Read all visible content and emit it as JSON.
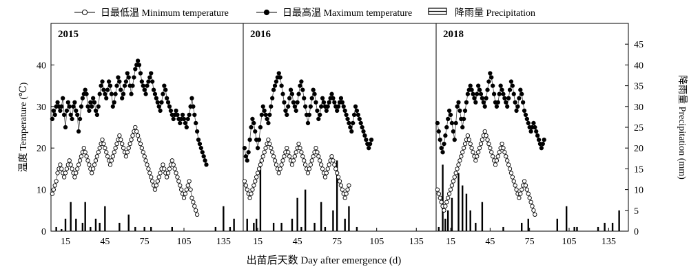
{
  "chart_data": {
    "type": "multi-panel line + bar",
    "legend": {
      "placement": "top-center",
      "entries": [
        {
          "key": "tmin",
          "label": "日最低温 Minimum temperature",
          "marker": "open-circle-line"
        },
        {
          "key": "tmax",
          "label": "日最高温 Maximum temperature",
          "marker": "filled-circle-line"
        },
        {
          "key": "prec",
          "label": "降雨量 Precipitation",
          "marker": "bar"
        }
      ]
    },
    "xlabel": "出苗后天数 Day after emergence (d)",
    "ylabel_left": "温度 Temperature (℃)",
    "ylabel_right": "降雨量 Precipitation (mm)",
    "ylim_left": [
      0,
      50
    ],
    "ylim_right": [
      0,
      50
    ],
    "yticks_left": [
      0,
      10,
      20,
      30,
      40
    ],
    "yticks_right": [
      0,
      5,
      10,
      15,
      20,
      25,
      30,
      35,
      40,
      45
    ],
    "xlim": [
      4,
      150
    ],
    "xticks": [
      15,
      45,
      75,
      105,
      135
    ],
    "panels": [
      {
        "year": "2015",
        "x_start": 5,
        "tmax": [
          27,
          29,
          28,
          30,
          31,
          30,
          29,
          30,
          32,
          28,
          25,
          29,
          31,
          30,
          28,
          27,
          30,
          31,
          29,
          28,
          24,
          27,
          30,
          32,
          33,
          34,
          33,
          30,
          29,
          31,
          30,
          32,
          31,
          29,
          28,
          30,
          33,
          35,
          36,
          34,
          33,
          32,
          34,
          36,
          35,
          33,
          30,
          31,
          33,
          35,
          37,
          36,
          34,
          32,
          33,
          35,
          36,
          38,
          37,
          35,
          33,
          35,
          37,
          39,
          40,
          41,
          40,
          38,
          36,
          35,
          34,
          33,
          35,
          36,
          37,
          38,
          36,
          34,
          33,
          32,
          31,
          30,
          29,
          31,
          33,
          35,
          34,
          32,
          31,
          30,
          29,
          28,
          27,
          28,
          29,
          28,
          27,
          26,
          27,
          28,
          27,
          26,
          25,
          27,
          28,
          30,
          32,
          30,
          28,
          26,
          24,
          22,
          21,
          20,
          19,
          18,
          17,
          16
        ],
        "tmin": [
          9,
          10,
          11,
          12,
          14,
          15,
          16,
          15,
          14,
          13,
          14,
          15,
          16,
          17,
          16,
          15,
          14,
          13,
          14,
          15,
          16,
          17,
          18,
          19,
          20,
          19,
          18,
          17,
          16,
          15,
          14,
          15,
          16,
          17,
          18,
          19,
          20,
          21,
          22,
          21,
          20,
          19,
          18,
          17,
          16,
          17,
          18,
          19,
          20,
          21,
          22,
          23,
          22,
          21,
          20,
          19,
          18,
          19,
          20,
          21,
          22,
          23,
          24,
          25,
          24,
          23,
          22,
          21,
          20,
          19,
          18,
          17,
          16,
          15,
          14,
          13,
          12,
          11,
          10,
          11,
          12,
          13,
          14,
          15,
          16,
          15,
          14,
          13,
          14,
          15,
          16,
          17,
          16,
          15,
          14,
          13,
          12,
          11,
          10,
          9,
          8,
          9,
          10,
          11,
          12,
          10,
          8,
          7,
          6,
          5,
          4
        ],
        "prec": [
          [
            8,
            1
          ],
          [
            12,
            0.5
          ],
          [
            15,
            3
          ],
          [
            19,
            7
          ],
          [
            23,
            3
          ],
          [
            28,
            2
          ],
          [
            30,
            7
          ],
          [
            34,
            1
          ],
          [
            38,
            3
          ],
          [
            41,
            2
          ],
          [
            45,
            6
          ],
          [
            56,
            2
          ],
          [
            63,
            4
          ],
          [
            68,
            1
          ],
          [
            75,
            1
          ],
          [
            80,
            1
          ],
          [
            96,
            1
          ],
          [
            129,
            1
          ],
          [
            135,
            6
          ],
          [
            140,
            1
          ],
          [
            143,
            3
          ]
        ]
      },
      {
        "year": "2016",
        "x_start": 5,
        "tmax": [
          20,
          18,
          17,
          19,
          22,
          25,
          27,
          26,
          24,
          22,
          20,
          22,
          25,
          28,
          30,
          29,
          28,
          27,
          26,
          28,
          30,
          32,
          34,
          35,
          36,
          37,
          38,
          37,
          35,
          33,
          31,
          29,
          28,
          30,
          32,
          34,
          33,
          31,
          30,
          29,
          31,
          33,
          35,
          36,
          34,
          32,
          30,
          28,
          26,
          28,
          30,
          32,
          34,
          33,
          31,
          29,
          27,
          28,
          30,
          32,
          31,
          30,
          29,
          30,
          31,
          32,
          33,
          32,
          31,
          30,
          29,
          30,
          31,
          32,
          31,
          30,
          29,
          28,
          27,
          26,
          25,
          24,
          26,
          28,
          30,
          29,
          28,
          27,
          26,
          25,
          24,
          23,
          22,
          21,
          20,
          21,
          22
        ],
        "tmin": [
          12,
          11,
          10,
          9,
          8,
          9,
          10,
          11,
          12,
          13,
          14,
          15,
          16,
          17,
          18,
          19,
          20,
          21,
          22,
          21,
          20,
          19,
          18,
          17,
          16,
          15,
          14,
          15,
          16,
          17,
          18,
          19,
          20,
          19,
          18,
          17,
          16,
          17,
          18,
          19,
          20,
          21,
          20,
          19,
          18,
          17,
          16,
          15,
          14,
          15,
          16,
          17,
          18,
          19,
          20,
          19,
          18,
          17,
          16,
          15,
          14,
          13,
          14,
          15,
          16,
          17,
          18,
          17,
          16,
          15,
          14,
          13,
          12,
          11,
          10,
          9,
          8,
          9,
          10,
          11
        ],
        "prec": [
          [
            7,
            3
          ],
          [
            12,
            2
          ],
          [
            14,
            3
          ],
          [
            17,
            17
          ],
          [
            27,
            2
          ],
          [
            33,
            2
          ],
          [
            41,
            3
          ],
          [
            45,
            8
          ],
          [
            48,
            1
          ],
          [
            51,
            10
          ],
          [
            58,
            2
          ],
          [
            63,
            7
          ],
          [
            66,
            1
          ],
          [
            72,
            5
          ],
          [
            75,
            17
          ],
          [
            81,
            3
          ],
          [
            84,
            6
          ],
          [
            90,
            1
          ]
        ]
      },
      {
        "year": "2018",
        "x_start": 5,
        "tmax": [
          26,
          24,
          22,
          20,
          19,
          21,
          23,
          25,
          27,
          29,
          28,
          26,
          24,
          22,
          26,
          30,
          31,
          29,
          27,
          25,
          27,
          29,
          31,
          33,
          34,
          35,
          34,
          33,
          32,
          31,
          33,
          35,
          34,
          33,
          32,
          31,
          30,
          32,
          34,
          36,
          38,
          37,
          35,
          33,
          31,
          30,
          31,
          33,
          35,
          34,
          33,
          32,
          31,
          30,
          32,
          34,
          36,
          35,
          33,
          31,
          29,
          30,
          32,
          34,
          33,
          31,
          29,
          28,
          27,
          26,
          25,
          24,
          25,
          26,
          25,
          24,
          23,
          22,
          21,
          20,
          21,
          22
        ],
        "tmin": [
          10,
          9,
          8,
          7,
          6,
          5,
          6,
          7,
          8,
          9,
          10,
          11,
          12,
          13,
          14,
          15,
          16,
          17,
          18,
          19,
          20,
          21,
          22,
          23,
          22,
          21,
          20,
          19,
          18,
          17,
          18,
          19,
          20,
          21,
          22,
          23,
          24,
          23,
          22,
          21,
          20,
          19,
          18,
          17,
          16,
          17,
          18,
          19,
          20,
          21,
          20,
          19,
          18,
          17,
          16,
          15,
          14,
          13,
          12,
          11,
          10,
          9,
          8,
          9,
          10,
          11,
          12,
          11,
          10,
          9,
          8,
          7,
          6,
          5,
          4
        ],
        "prec": [
          [
            6,
            1
          ],
          [
            9,
            16
          ],
          [
            11,
            3
          ],
          [
            13,
            5
          ],
          [
            16,
            8
          ],
          [
            21,
            14
          ],
          [
            24,
            11
          ],
          [
            27,
            9
          ],
          [
            30,
            5
          ],
          [
            34,
            2
          ],
          [
            39,
            7
          ],
          [
            55,
            1
          ],
          [
            69,
            2
          ],
          [
            74,
            3
          ],
          [
            96,
            3
          ],
          [
            103,
            6
          ],
          [
            109,
            1
          ],
          [
            111,
            1
          ],
          [
            127,
            1
          ],
          [
            132,
            2
          ],
          [
            138,
            2
          ],
          [
            143,
            5
          ]
        ]
      }
    ]
  }
}
